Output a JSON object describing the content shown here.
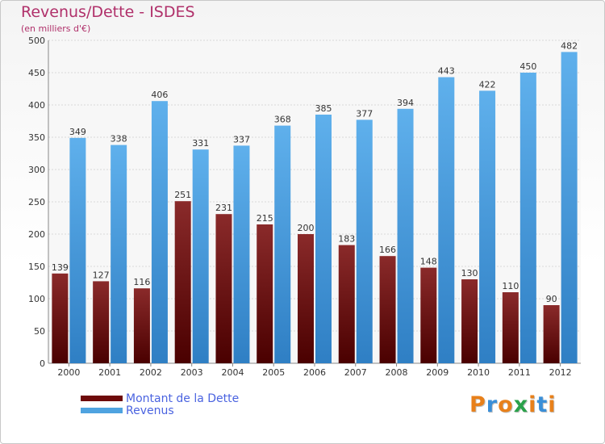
{
  "title": "Revenus/Dette - ISDES",
  "subtitle": "(en milliers d'€)",
  "brand": "Proxiti",
  "colors": {
    "debt": "#7a1a1a",
    "revenue": "#4fa3e0",
    "title": "#b0306a",
    "legend_text": "#4a63e0"
  },
  "legend": [
    {
      "label": "Montant de la Dette",
      "color": "#6e0a0a"
    },
    {
      "label": "Revenus",
      "color": "#4fa3e0"
    }
  ],
  "chart_data": {
    "type": "bar",
    "categories": [
      "2000",
      "2001",
      "2002",
      "2003",
      "2004",
      "2005",
      "2006",
      "2007",
      "2008",
      "2009",
      "2010",
      "2011",
      "2012"
    ],
    "series": [
      {
        "name": "Montant de la Dette",
        "values": [
          139,
          127,
          116,
          251,
          231,
          215,
          200,
          183,
          166,
          148,
          130,
          110,
          90
        ]
      },
      {
        "name": "Revenus",
        "values": [
          349,
          338,
          406,
          331,
          337,
          368,
          385,
          377,
          394,
          443,
          422,
          450,
          482
        ]
      }
    ],
    "ylim": [
      0,
      500
    ],
    "yticks": [
      0,
      50,
      100,
      150,
      200,
      250,
      300,
      350,
      400,
      450,
      500
    ],
    "grid": true,
    "legend_position": "bottom-left"
  }
}
